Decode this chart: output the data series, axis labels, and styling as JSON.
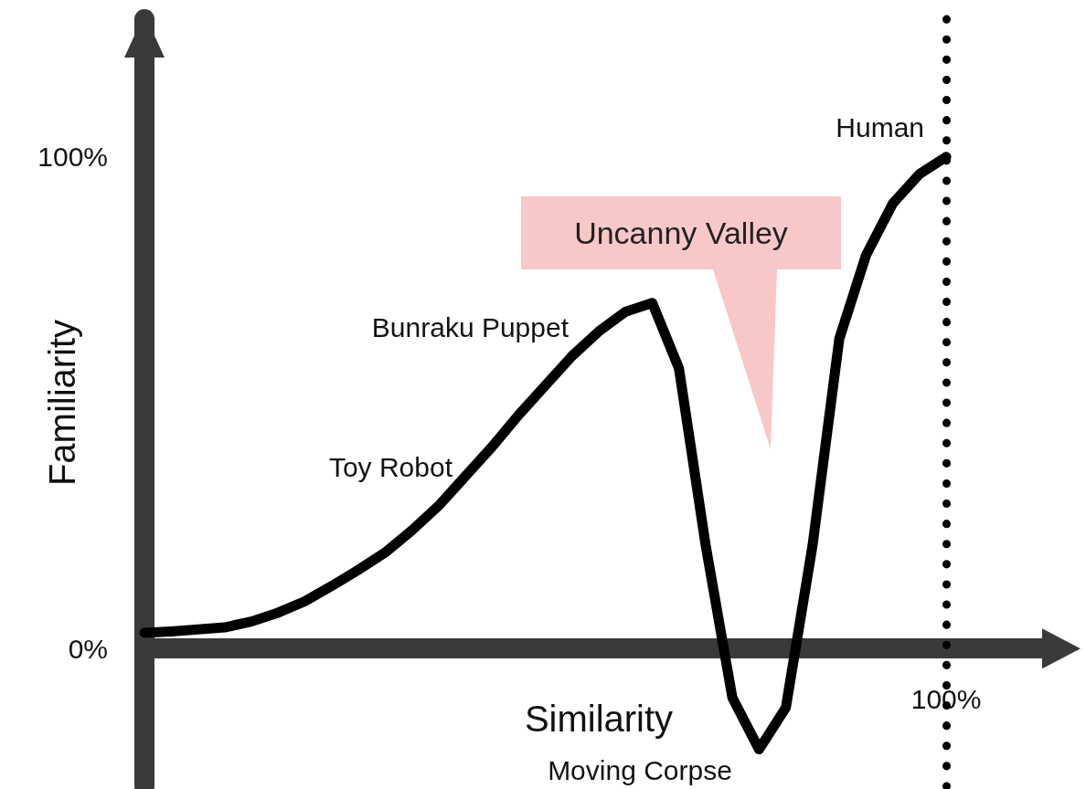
{
  "chart_data": {
    "type": "line",
    "xlabel": "Similarity",
    "ylabel": "Familiarity",
    "ylim": [
      -28,
      128
    ],
    "yticks": [
      {
        "value": 0,
        "label": "0%"
      },
      {
        "value": 100,
        "label": "100%"
      }
    ],
    "categories": [
      null,
      null,
      null,
      null,
      null,
      null,
      null,
      null,
      null,
      null,
      null,
      null,
      null,
      null,
      null,
      null,
      null,
      null,
      null,
      null,
      null,
      null,
      null,
      null,
      null,
      null,
      null,
      null,
      null,
      null,
      "100%",
      null,
      null,
      null,
      null
    ],
    "values": [
      3.2,
      3.5,
      3.9,
      4.3,
      5.5,
      7.3,
      9.6,
      12.7,
      16,
      19.5,
      24,
      29,
      35,
      41,
      47.5,
      53.5,
      59.5,
      64.5,
      68.5,
      70.3,
      57,
      21,
      -10,
      -20.5,
      -12,
      21,
      63,
      80,
      90.5,
      96.5,
      100,
      null,
      null,
      null,
      null
    ],
    "color": "#000000",
    "line_style": "solid",
    "ref_lines": [
      {
        "axis": "x",
        "value": "100%",
        "color": "#000000",
        "line_style": "dotted"
      }
    ],
    "annotations": [
      "Toy Robot",
      "Bunraku Puppet",
      "Moving Corpse",
      {
        "text": "Human",
        "x": "100%",
        "y": 100
      },
      "Uncanny Valley"
    ]
  }
}
